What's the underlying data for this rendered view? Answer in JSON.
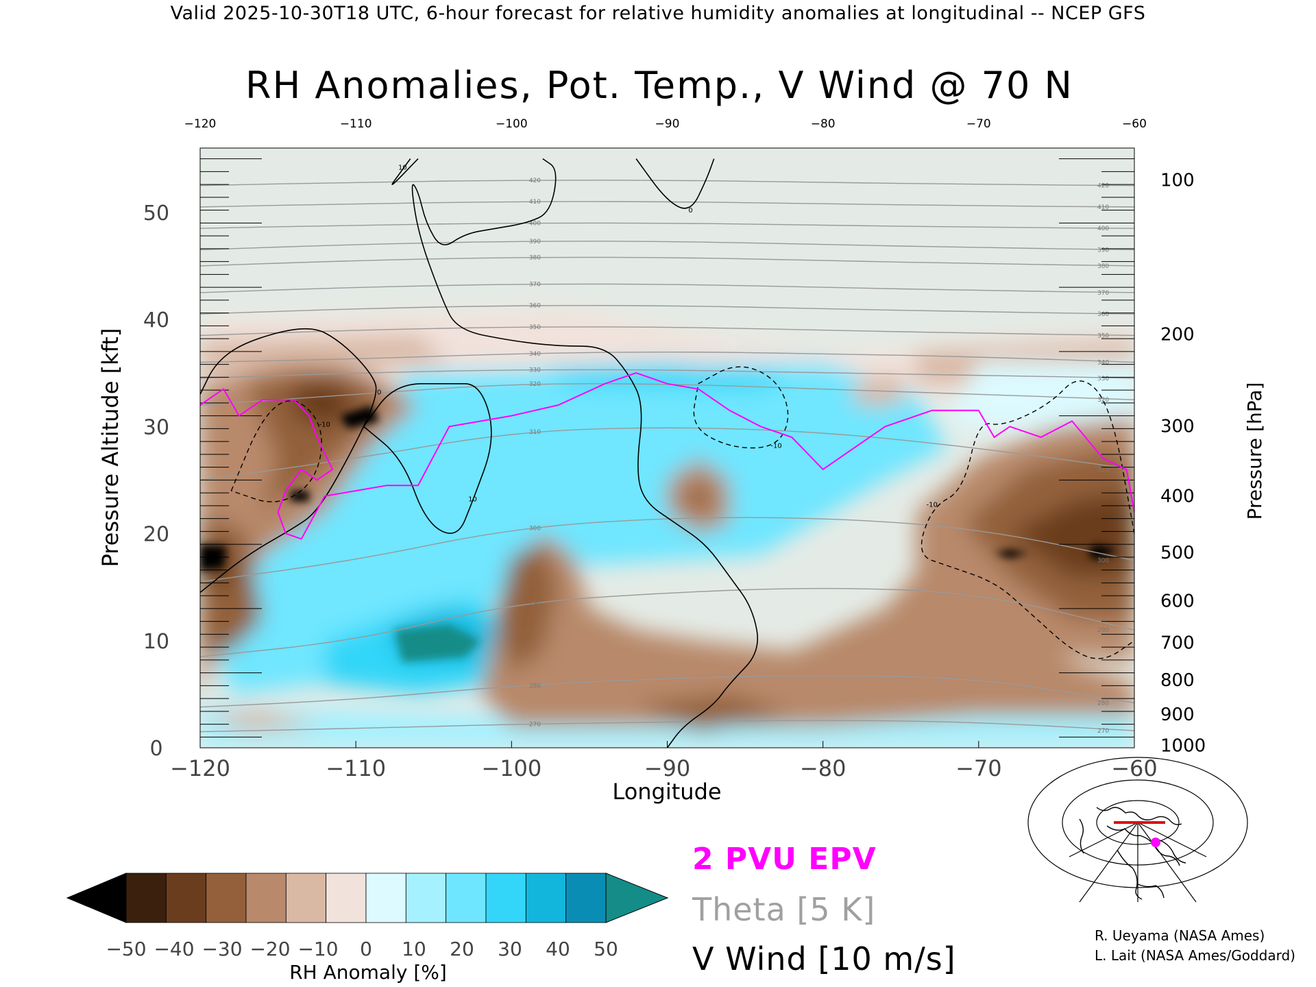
{
  "header": "Valid 2025-10-30T18 UTC, 6-hour forecast for relative humidity anomalies at longitudinal -- NCEP GFS",
  "chart_data": {
    "type": "heatmap",
    "title": "RH Anomalies, Pot. Temp., V Wind @ 70 N",
    "xlabel": "Longitude",
    "ylabel_left": "Pressure Altitude [kft]",
    "ylabel_right": "Pressure [hPa]",
    "xlim": [
      -120,
      -60
    ],
    "ylim_kft": [
      0,
      56
    ],
    "x_ticks": [
      -120,
      -110,
      -100,
      -90,
      -80,
      -70,
      -60
    ],
    "x_tick_labels": [
      "−120",
      "−110",
      "−100",
      "−90",
      "−80",
      "−70",
      "−60"
    ],
    "y_ticks_kft": [
      0,
      10,
      20,
      30,
      40,
      50
    ],
    "pressure_ticks": [
      {
        "p": 100,
        "kft": 53.1
      },
      {
        "p": 200,
        "kft": 38.7
      },
      {
        "p": 300,
        "kft": 30.1
      },
      {
        "p": 400,
        "kft": 23.6
      },
      {
        "p": 500,
        "kft": 18.3
      },
      {
        "p": 600,
        "kft": 13.8
      },
      {
        "p": 700,
        "kft": 9.9
      },
      {
        "p": 800,
        "kft": 6.4
      },
      {
        "p": 900,
        "kft": 3.2
      },
      {
        "p": 1000,
        "kft": 0.3
      }
    ],
    "colorbar": {
      "label": "RH Anomaly [%]",
      "ticks": [
        -50,
        -40,
        -30,
        -20,
        -10,
        0,
        10,
        20,
        30,
        40,
        50
      ],
      "tick_labels": [
        "−50",
        "−40",
        "−30",
        "−20",
        "−10",
        "0",
        "10",
        "20",
        "30",
        "40",
        "50"
      ],
      "colors": [
        "#000000",
        "#3b200d",
        "#6b3d1f",
        "#93603b",
        "#b8896a",
        "#d9b8a4",
        "#f1e2db",
        "#dcfaff",
        "#a6f1ff",
        "#6fe6ff",
        "#33d6f8",
        "#12b6dc",
        "#0a8db5",
        "#148c88"
      ]
    },
    "series": [
      {
        "name": "2 PVU EPV",
        "color": "#ff00ff",
        "points": [
          [
            -120,
            32
          ],
          [
            -118.5,
            33.5
          ],
          [
            -117.5,
            31
          ],
          [
            -116,
            32.5
          ],
          [
            -114,
            32.5
          ],
          [
            -113,
            31
          ],
          [
            -112.5,
            29
          ],
          [
            -111.5,
            26
          ],
          [
            -112.5,
            25
          ],
          [
            -113.5,
            26
          ],
          [
            -114.5,
            24
          ],
          [
            -115,
            22
          ],
          [
            -114.5,
            20
          ],
          [
            -113.5,
            19.5
          ],
          [
            -112,
            23.5
          ],
          [
            -110,
            24
          ],
          [
            -108,
            24.5
          ],
          [
            -106,
            24.5
          ],
          [
            -104,
            30
          ],
          [
            -100,
            31
          ],
          [
            -97,
            32
          ],
          [
            -94,
            34
          ],
          [
            -92,
            35
          ],
          [
            -90,
            34
          ],
          [
            -88,
            33.5
          ],
          [
            -86,
            31.5
          ],
          [
            -84,
            30
          ],
          [
            -82,
            29
          ],
          [
            -80,
            26
          ],
          [
            -78,
            28
          ],
          [
            -76,
            30
          ],
          [
            -73,
            31.5
          ],
          [
            -70,
            31.5
          ],
          [
            -69,
            29
          ],
          [
            -68,
            30
          ],
          [
            -66,
            29
          ],
          [
            -64,
            30.5
          ],
          [
            -62,
            27
          ],
          [
            -60.5,
            26
          ],
          [
            -60,
            22
          ]
        ]
      },
      {
        "name": "Theta [5 K]",
        "color": "#999999",
        "isentropes": [
          {
            "k": 270,
            "kft": [
              1.5,
              1.8,
              2.2,
              2.4,
              2.6,
              2.4,
              1.6
            ]
          },
          {
            "k": 280,
            "kft": [
              3.8,
              4.5,
              5.8,
              6.5,
              6.8,
              6.5,
              4.2
            ]
          },
          {
            "k": 290,
            "kft": [
              8.5,
              10.0,
              13.5,
              14.5,
              15.0,
              14.5,
              11.0
            ]
          },
          {
            "k": 300,
            "kft": [
              15.5,
              17.5,
              20.5,
              21.5,
              21.5,
              20.5,
              17.5
            ]
          },
          {
            "k": 310,
            "kft": [
              25.0,
              27.0,
              29.5,
              30.0,
              29.5,
              28.0,
              26.0
            ]
          },
          {
            "k": 320,
            "kft": [
              32.0,
              33.0,
              34.0,
              34.0,
              33.5,
              33.0,
              32.5
            ]
          },
          {
            "k": 330,
            "kft": [
              34.5,
              35.0,
              35.3,
              35.3,
              35.0,
              34.8,
              34.5
            ]
          },
          {
            "k": 340,
            "kft": [
              36.0,
              36.3,
              36.8,
              37.0,
              36.8,
              36.5,
              36.0
            ]
          },
          {
            "k": 350,
            "kft": [
              38.5,
              39.0,
              39.3,
              39.3,
              39.0,
              38.7,
              38.5
            ]
          },
          {
            "k": 360,
            "kft": [
              40.5,
              41.0,
              41.3,
              41.3,
              41.0,
              40.7,
              40.5
            ]
          },
          {
            "k": 370,
            "kft": [
              42.5,
              43.0,
              43.3,
              43.3,
              43.0,
              42.7,
              42.5
            ]
          },
          {
            "k": 380,
            "kft": [
              45.0,
              45.5,
              45.8,
              45.8,
              45.5,
              45.2,
              45.0
            ]
          },
          {
            "k": 390,
            "kft": [
              46.5,
              47.0,
              47.3,
              47.3,
              47.0,
              46.7,
              46.5
            ]
          },
          {
            "k": 400,
            "kft": [
              48.5,
              48.8,
              49.0,
              49.0,
              48.8,
              48.6,
              48.5
            ]
          },
          {
            "k": 410,
            "kft": [
              50.5,
              50.8,
              51.0,
              51.0,
              50.8,
              50.6,
              50.5
            ]
          },
          {
            "k": 420,
            "kft": [
              52.5,
              52.8,
              53.0,
              53.0,
              52.8,
              52.6,
              52.5
            ]
          }
        ]
      },
      {
        "name": "V Wind [10 m/s]",
        "color": "#000000",
        "zero_line": [
          [
            -98,
            55
          ],
          [
            -97,
            54
          ],
          [
            -97.5,
            50
          ],
          [
            -99,
            49
          ],
          [
            -101,
            48.5
          ],
          [
            -103,
            48
          ],
          [
            -104.5,
            46.5
          ],
          [
            -105.5,
            49
          ],
          [
            -106,
            52
          ],
          [
            -106.5,
            53
          ],
          [
            -106,
            48
          ],
          [
            -104.5,
            42
          ],
          [
            -103.5,
            39
          ],
          [
            -100,
            38
          ],
          [
            -97,
            37.5
          ],
          [
            -94,
            37.5
          ],
          [
            -92.5,
            35
          ],
          [
            -91.5,
            32
          ],
          [
            -92,
            26
          ],
          [
            -91.5,
            23
          ],
          [
            -89.5,
            21
          ],
          [
            -87.5,
            19
          ],
          [
            -86,
            16
          ],
          [
            -84.5,
            13
          ],
          [
            -84,
            9
          ],
          [
            -86,
            6
          ],
          [
            -87,
            4
          ],
          [
            -89,
            2
          ],
          [
            -90,
            0
          ]
        ],
        "closed": [
          {
            "label": "10",
            "pts": [
              [
                -106,
                55
              ],
              [
                -108,
                52
              ],
              [
                -107,
                54
              ],
              [
                -106.5,
                55
              ]
            ]
          },
          {
            "label": "10",
            "pts": [
              [
                -109.5,
                30
              ],
              [
                -107.5,
                34
              ],
              [
                -104,
                34
              ],
              [
                -102,
                34
              ],
              [
                -101,
                29
              ],
              [
                -102.5,
                23
              ],
              [
                -103.5,
                19.5
              ],
              [
                -105.5,
                21
              ],
              [
                -107,
                27
              ],
              [
                -109.5,
                30
              ]
            ]
          },
          {
            "label": "0",
            "pts": [
              [
                -120,
                33
              ],
              [
                -119,
                36
              ],
              [
                -117,
                38
              ],
              [
                -113,
                39.5
              ],
              [
                -111,
                38
              ],
              [
                -109,
                35
              ],
              [
                -108.5,
                33
              ],
              [
                -110.5,
                27
              ],
              [
                -112.5,
                22
              ],
              [
                -114,
                20.5
              ],
              [
                -117,
                18
              ],
              [
                -120,
                14.5
              ]
            ]
          },
          {
            "label": "0",
            "pts": [
              [
                -92,
                55
              ],
              [
                -90,
                51
              ],
              [
                -88.5,
                50
              ],
              [
                -87.5,
                53
              ],
              [
                -87,
                55
              ]
            ]
          }
        ],
        "dashed": [
          {
            "label": "-10",
            "pts": [
              [
                -118,
                24
              ],
              [
                -116,
                31
              ],
              [
                -114,
                33
              ],
              [
                -112,
                30
              ],
              [
                -112.5,
                25
              ],
              [
                -115,
                22.5
              ],
              [
                -118,
                24
              ]
            ]
          },
          {
            "label": "-10",
            "pts": [
              [
                -88,
                34
              ],
              [
                -85.5,
                36
              ],
              [
                -83,
                34.5
              ],
              [
                -82,
                31
              ],
              [
                -83,
                28
              ],
              [
                -86,
                28
              ],
              [
                -88.5,
                30
              ],
              [
                -88,
                34
              ]
            ]
          },
          {
            "label": "-10",
            "pts": [
              [
                -60,
                20
              ],
              [
                -61.5,
                32
              ],
              [
                -63.5,
                35
              ],
              [
                -65.5,
                32
              ],
              [
                -68.5,
                30
              ],
              [
                -70,
                30.5
              ],
              [
                -71,
                24
              ],
              [
                -73,
                22.5
              ],
              [
                -74,
                18
              ],
              [
                -72,
                17
              ],
              [
                -69,
                15.5
              ],
              [
                -67,
                13
              ],
              [
                -64,
                9
              ],
              [
                -62,
                8
              ],
              [
                -60,
                10
              ]
            ]
          }
        ]
      }
    ]
  },
  "legend": {
    "epv": "2 PVU EPV",
    "theta": "Theta [5 K]",
    "vwind": "V Wind [10 m/s]"
  },
  "credits": {
    "line1": "R. Ueyama (NASA Ames)",
    "line2": "L. Lait (NASA Ames/Goddard)"
  },
  "colors": {
    "epv": "#ff00ff",
    "theta": "#999999",
    "wind": "#000000",
    "background_strat": "#e4ebe6"
  }
}
